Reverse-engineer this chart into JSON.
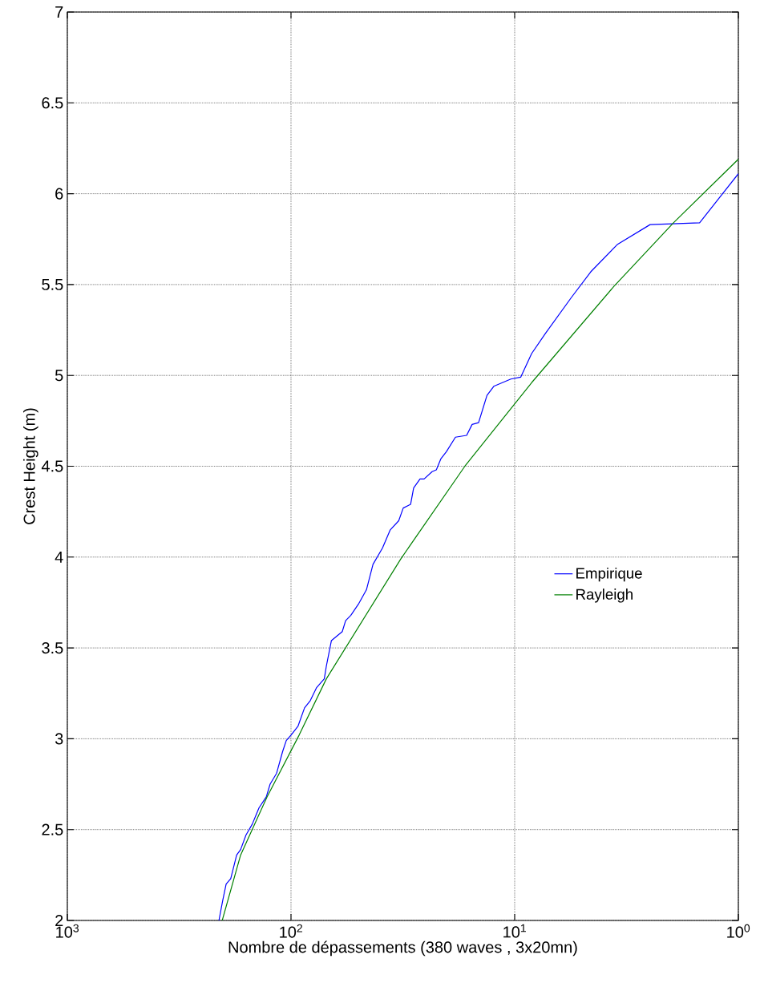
{
  "chart_data": {
    "type": "line",
    "xlabel": "Nombre de dépassements (380 waves , 3x20mn)",
    "ylabel": "Crest Height (m)",
    "log": "x",
    "xlim": [
      1000,
      1
    ],
    "ylim": [
      2,
      7
    ],
    "xticks": [
      {
        "value": 1000,
        "label": "10$^{3}$"
      },
      {
        "value": 100,
        "label": "10$^{2}$"
      },
      {
        "value": 10,
        "label": "10$^{1}$"
      },
      {
        "value": 1,
        "label": "10$^{0}$"
      }
    ],
    "yticks": [
      2,
      2.5,
      3,
      3.5,
      4,
      4.5,
      5,
      5.5,
      6,
      6.5,
      7
    ],
    "grid": true,
    "legend": "right",
    "line_style": "solid",
    "series": [
      {
        "name": "Empirique",
        "color": "#0000ff",
        "x": [
          210,
          202,
          195,
          186,
          175,
          168,
          159,
          149,
          139,
          129,
          124,
          116,
          109,
          105,
          100,
          93,
          87,
          82,
          77,
          71,
          69.5,
          66,
          59,
          57,
          54,
          50,
          46,
          43,
          39,
          36,
          33,
          31.5,
          29.2,
          28.3,
          26.5,
          25.4,
          23.4,
          22.4,
          21.4,
          20.2,
          18.4,
          16.4,
          15.5,
          14.5,
          13.3,
          12.4,
          10.4,
          9.4,
          8.4,
          7.3,
          5.57,
          4.57,
          3.48,
          2.48,
          1.49,
          1
        ],
        "values": [
          2.0,
          2.11,
          2.2,
          2.23,
          2.36,
          2.39,
          2.47,
          2.53,
          2.62,
          2.68,
          2.75,
          2.81,
          2.93,
          2.99,
          3.02,
          3.07,
          3.17,
          3.21,
          3.28,
          3.33,
          3.4,
          3.54,
          3.59,
          3.65,
          3.68,
          3.74,
          3.82,
          3.96,
          4.05,
          4.15,
          4.2,
          4.27,
          4.29,
          4.38,
          4.43,
          4.43,
          4.47,
          4.48,
          4.54,
          4.58,
          4.66,
          4.67,
          4.73,
          4.74,
          4.89,
          4.94,
          4.98,
          4.99,
          5.12,
          5.23,
          5.43,
          5.57,
          5.72,
          5.83,
          5.84,
          6.11
        ]
      },
      {
        "name": "Rayleigh",
        "color": "#008000",
        "x": [
          203,
          168,
          128,
          92,
          69.5,
          32.3,
          16.7,
          8.4,
          3.6,
          1.95,
          1
        ],
        "values": [
          2.0,
          2.36,
          2.68,
          3.02,
          3.33,
          3.99,
          4.5,
          4.96,
          5.49,
          5.84,
          6.19
        ]
      }
    ]
  }
}
